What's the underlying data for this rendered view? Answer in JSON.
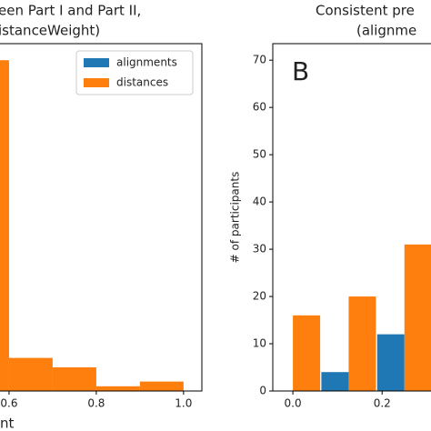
{
  "chart_data": [
    {
      "type": "histogram",
      "title": [
        "een Part I and Part II,",
        "istanceWeight)"
      ],
      "x_label": "nt",
      "bins": [
        0.5,
        0.6,
        0.7,
        0.8,
        0.9,
        1.0
      ],
      "series": [
        {
          "name": "alignments",
          "color": "#1f77b4",
          "values": [
            0,
            0,
            0,
            0,
            0
          ]
        },
        {
          "name": "distances",
          "color": "#ff7f0e",
          "values": [
            70,
            7,
            5,
            1,
            2
          ]
        }
      ],
      "xlim": [
        0.4,
        1.042
      ],
      "xticks": [
        0.6,
        0.8,
        {
          "value": 1.0,
          "label": "1.0"
        }
      ],
      "ylim": [
        0,
        73.5
      ],
      "legend": "upper right"
    },
    {
      "type": "bar",
      "title": [
        "Consistent pre",
        "(alignme"
      ],
      "panel_label": "B",
      "y_label": "# of participants",
      "x": [
        0.0,
        0.125,
        0.25
      ],
      "series": [
        {
          "name": "alignments",
          "color": "#1f77b4",
          "values": [
            0,
            4,
            12
          ]
        },
        {
          "name": "distances",
          "color": "#ff7f0e",
          "values": [
            16,
            20,
            31
          ]
        }
      ],
      "xlim": [
        -0.045,
        0.77
      ],
      "xticks": [
        {
          "value": 0.0,
          "label": "0.0"
        },
        0.2
      ],
      "ylim": [
        0,
        73.5
      ],
      "yticks": [
        0,
        10,
        20,
        30,
        40,
        50,
        60,
        70
      ]
    }
  ]
}
